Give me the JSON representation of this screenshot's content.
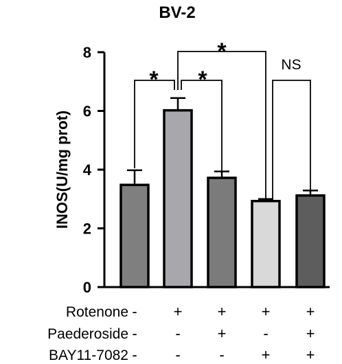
{
  "chart_data": {
    "type": "bar",
    "title": "BV-2",
    "xlabel": "",
    "ylabel": "INOS(U/mg prot)",
    "ylim": [
      0,
      8
    ],
    "yticks": [
      "0",
      "2",
      "4",
      "6",
      "8"
    ],
    "values": [
      3.48,
      6.02,
      3.72,
      2.93,
      3.12
    ],
    "errors": [
      0.5,
      0.42,
      0.22,
      0.07,
      0.17
    ],
    "bar_colors": [
      "#7f7f7f",
      "#a7a7ac",
      "#7b7b7b",
      "#d9d9d9",
      "#5d5d5d"
    ],
    "conditions": [
      {
        "name": "Rotenone",
        "signs": [
          "-",
          "+",
          "+",
          "+",
          "+"
        ]
      },
      {
        "name": "Paederoside",
        "signs": [
          "-",
          "-",
          "+",
          "-",
          "+"
        ]
      },
      {
        "name": "BAY11-7082",
        "signs": [
          "-",
          "-",
          "-",
          "+",
          "+"
        ]
      }
    ],
    "comparisons": [
      {
        "from": 0,
        "to": 1,
        "label": "*"
      },
      {
        "from": 1,
        "to": 2,
        "label": "*"
      },
      {
        "from": 1,
        "to": 3,
        "label": "*"
      },
      {
        "from": 3,
        "to": 4,
        "label": "NS"
      }
    ]
  }
}
